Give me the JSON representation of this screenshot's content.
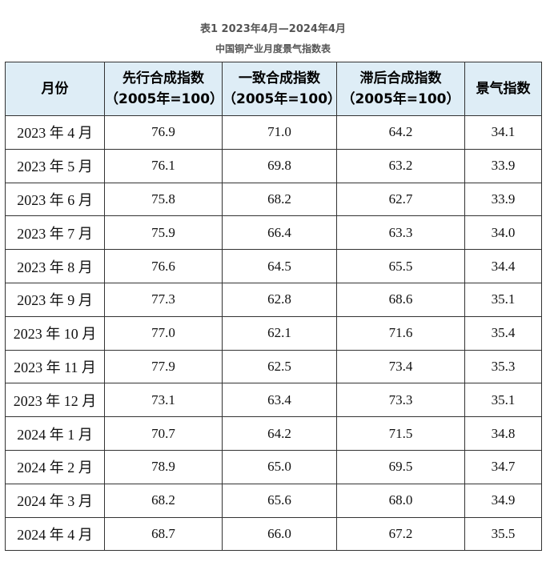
{
  "title": "表1 2023年4月—2024年4月",
  "subtitle": "中国铜产业月度景气指数表",
  "table": {
    "header": [
      [
        "月份"
      ],
      [
        "先行合成指数",
        "（2005年=100）"
      ],
      [
        "一致合成指数",
        "（2005年=100）"
      ],
      [
        "滞后合成指数",
        "（2005年=100）"
      ],
      [
        "景气指数"
      ]
    ],
    "rows": [
      [
        "2023 年 4 月",
        "76.9",
        "71.0",
        "64.2",
        "34.1"
      ],
      [
        "2023 年 5 月",
        "76.1",
        "69.8",
        "63.2",
        "33.9"
      ],
      [
        "2023 年 6 月",
        "75.8",
        "68.2",
        "62.7",
        "33.9"
      ],
      [
        "2023 年 7 月",
        "75.9",
        "66.4",
        "63.3",
        "34.0"
      ],
      [
        "2023 年 8 月",
        "76.6",
        "64.5",
        "65.5",
        "34.4"
      ],
      [
        "2023 年 9 月",
        "77.3",
        "62.8",
        "68.6",
        "35.1"
      ],
      [
        "2023 年 10 月",
        "77.0",
        "62.1",
        "71.6",
        "35.4"
      ],
      [
        "2023 年 11 月",
        "77.9",
        "62.5",
        "73.4",
        "35.3"
      ],
      [
        "2023 年 12 月",
        "73.1",
        "63.4",
        "73.3",
        "35.1"
      ],
      [
        "2024 年 1 月",
        "70.7",
        "64.2",
        "71.5",
        "34.8"
      ],
      [
        "2024 年 2 月",
        "78.9",
        "65.0",
        "69.5",
        "34.7"
      ],
      [
        "2024 年 3 月",
        "68.2",
        "65.6",
        "68.0",
        "34.9"
      ],
      [
        "2024 年 4 月",
        "68.7",
        "66.0",
        "67.2",
        "35.5"
      ]
    ]
  }
}
